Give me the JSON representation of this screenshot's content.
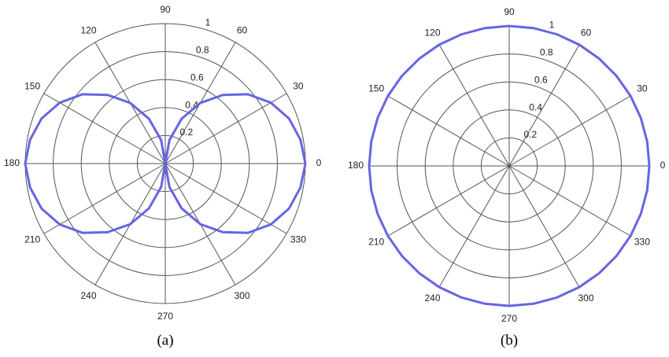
{
  "chart_data": [
    {
      "type": "polar",
      "caption": "(a)",
      "color": "#6565e3",
      "theta": [
        0,
        10,
        20,
        30,
        40,
        50,
        60,
        70,
        80,
        90,
        100,
        110,
        120,
        130,
        140,
        150,
        160,
        170,
        180,
        190,
        200,
        210,
        220,
        230,
        240,
        250,
        260,
        270,
        280,
        290,
        300,
        310,
        320,
        330,
        340,
        350,
        360
      ],
      "r": [
        1,
        0.98,
        0.94,
        0.87,
        0.77,
        0.64,
        0.5,
        0.34,
        0.17,
        0,
        0.17,
        0.34,
        0.5,
        0.64,
        0.77,
        0.87,
        0.94,
        0.98,
        1,
        0.98,
        0.94,
        0.87,
        0.77,
        0.64,
        0.5,
        0.34,
        0.17,
        0,
        0.17,
        0.34,
        0.5,
        0.64,
        0.77,
        0.87,
        0.94,
        0.98,
        1
      ],
      "rlim": [
        0,
        1
      ],
      "rticks": [
        0.2,
        0.4,
        0.6,
        0.8,
        1
      ],
      "thetaticks": [
        0,
        30,
        60,
        90,
        120,
        150,
        180,
        210,
        240,
        270,
        300,
        330
      ]
    },
    {
      "type": "polar",
      "caption": "(b)",
      "color": "#6565e3",
      "theta": [
        0,
        10,
        20,
        30,
        40,
        50,
        60,
        70,
        80,
        90,
        100,
        110,
        120,
        130,
        140,
        150,
        160,
        170,
        180,
        190,
        200,
        210,
        220,
        230,
        240,
        250,
        260,
        270,
        280,
        290,
        300,
        310,
        320,
        330,
        340,
        350,
        360
      ],
      "r": [
        1,
        1,
        1,
        1,
        1,
        1,
        1,
        1,
        1,
        1,
        1,
        1,
        1,
        1,
        1,
        1,
        1,
        1,
        1,
        1,
        1,
        1,
        1,
        1,
        1,
        1,
        1,
        1,
        1,
        1,
        1,
        1,
        1,
        1,
        1,
        1,
        1
      ],
      "rlim": [
        0,
        1
      ],
      "rticks": [
        0.2,
        0.4,
        0.6,
        0.8,
        1
      ],
      "thetaticks": [
        0,
        30,
        60,
        90,
        120,
        150,
        180,
        210,
        240,
        270,
        300,
        330
      ]
    }
  ]
}
